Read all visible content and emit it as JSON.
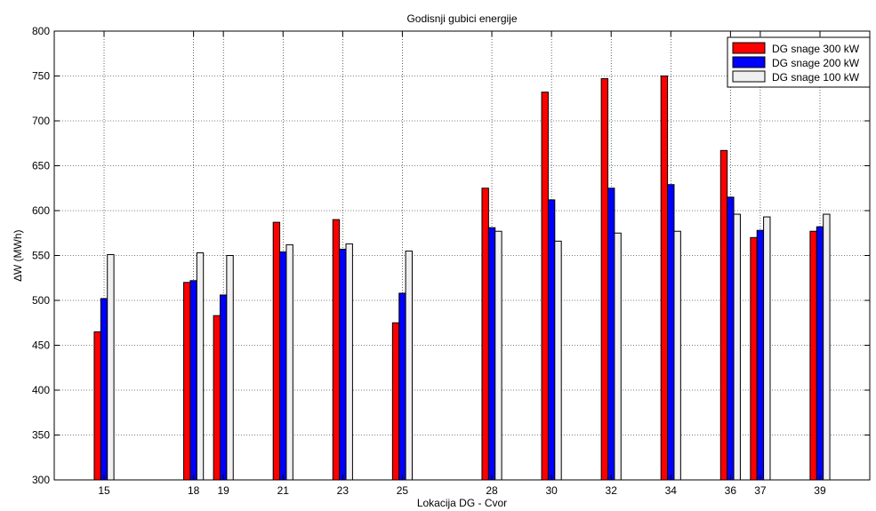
{
  "chart_data": {
    "type": "bar",
    "title": "Godisnji gubici energije",
    "xlabel": "Lokacija DG - Cvor",
    "ylabel": "∆W (MWh)",
    "x": [
      15,
      18,
      19,
      21,
      23,
      25,
      28,
      30,
      32,
      34,
      36,
      37,
      39
    ],
    "xlim": [
      13.33,
      40.67
    ],
    "ylim": [
      300,
      800
    ],
    "yticks": [
      300,
      350,
      400,
      450,
      500,
      550,
      600,
      650,
      700,
      750,
      800
    ],
    "grid": true,
    "legend_position": "top-right",
    "series": [
      {
        "name": "DG snage 300 kW",
        "color": "#ff0000",
        "values": [
          465,
          520,
          483,
          587,
          590,
          475,
          625,
          732,
          747,
          750,
          667,
          570,
          577
        ]
      },
      {
        "name": "DG snage 200 kW",
        "color": "#0000ff",
        "values": [
          502,
          522,
          506,
          554,
          557,
          508,
          581,
          612,
          625,
          629,
          615,
          578,
          582
        ]
      },
      {
        "name": "DG snage 100 kW",
        "color": "#f0f0f0",
        "values": [
          551,
          553,
          550,
          562,
          563,
          555,
          577,
          566,
          575,
          577,
          596,
          593,
          596
        ]
      }
    ]
  }
}
